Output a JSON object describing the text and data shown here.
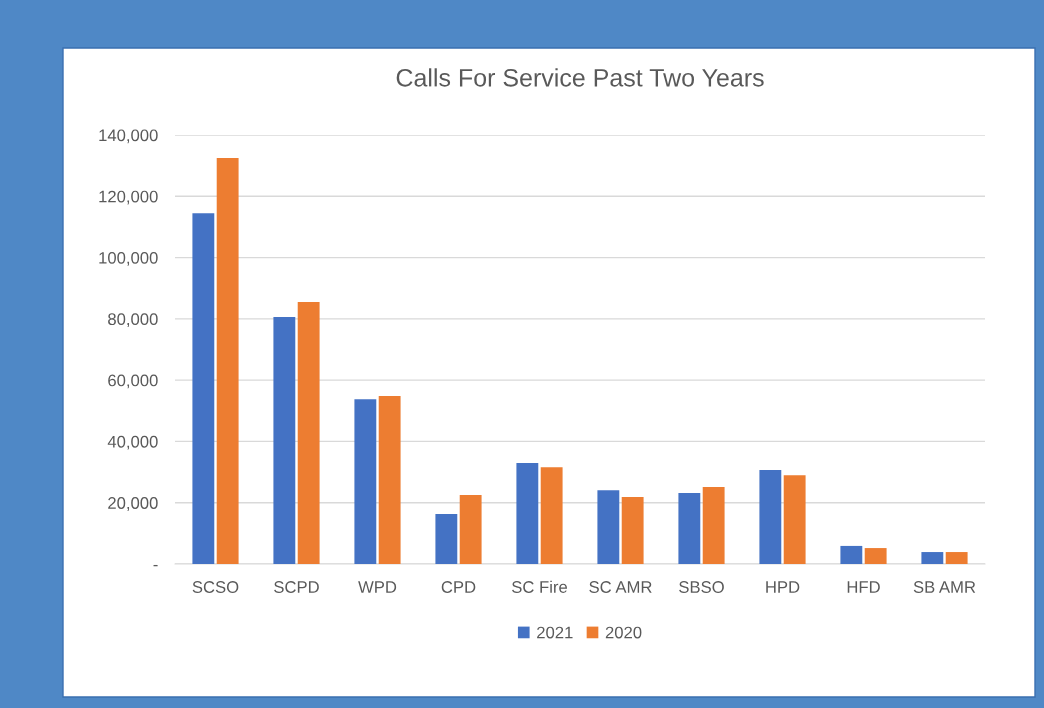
{
  "chart_data": {
    "type": "bar",
    "title": "Calls For Service Past Two Years",
    "categories": [
      "SCSO",
      "SCPD",
      "WPD",
      "CPD",
      "SC Fire",
      "SC AMR",
      "SBSO",
      "HPD",
      "HFD",
      "SB AMR"
    ],
    "series": [
      {
        "name": "2021",
        "color": "#4472c4",
        "values": [
          114500,
          80600,
          53800,
          16300,
          33000,
          24100,
          23200,
          30700,
          5900,
          3900
        ]
      },
      {
        "name": "2020",
        "color": "#ed7d31",
        "values": [
          132500,
          85500,
          54800,
          22500,
          31600,
          21900,
          25100,
          29000,
          5200,
          3900
        ]
      }
    ],
    "ylim": [
      0,
      140000
    ],
    "yticks": [
      {
        "value": 0,
        "label": "-"
      },
      {
        "value": 20000,
        "label": "20,000"
      },
      {
        "value": 40000,
        "label": "40,000"
      },
      {
        "value": 60000,
        "label": "60,000"
      },
      {
        "value": 80000,
        "label": "80,000"
      },
      {
        "value": 100000,
        "label": "100,000"
      },
      {
        "value": 120000,
        "label": "120,000"
      },
      {
        "value": 140000,
        "label": "140,000"
      }
    ],
    "grid": "y",
    "legend": "bottom"
  }
}
